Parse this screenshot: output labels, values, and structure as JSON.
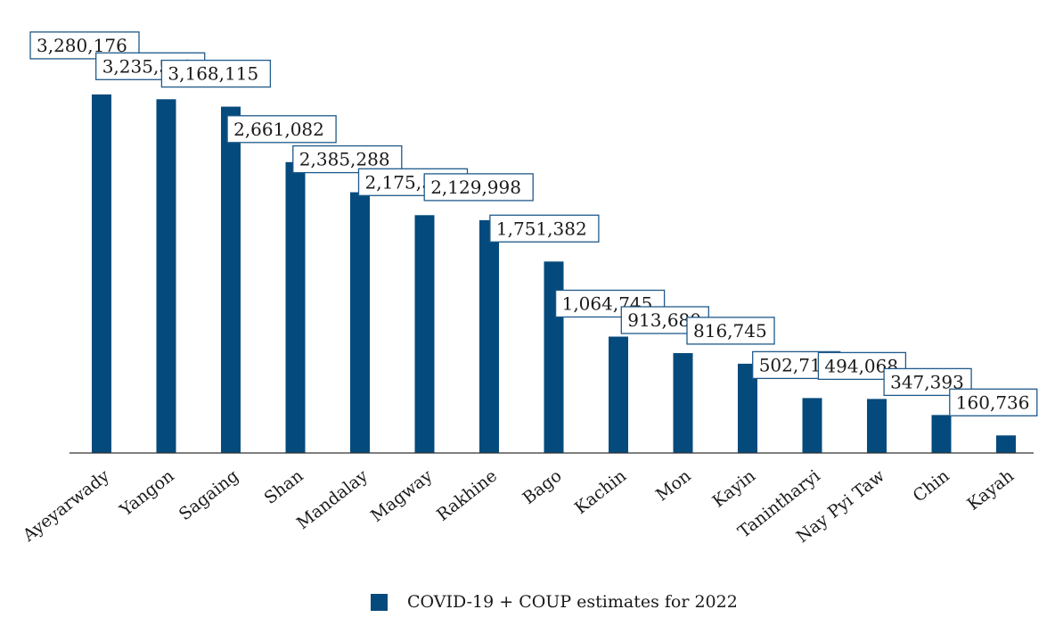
{
  "colors": {
    "bar": "#044a7c",
    "label_border": "#1f5a8a",
    "axis": "#333333"
  },
  "chart_data": {
    "type": "bar",
    "categories": [
      "Ayeyarwady",
      "Yangon",
      "Sagaing",
      "Shan",
      "Mandalay",
      "Magway",
      "Rakhine",
      "Bago",
      "Kachin",
      "Mon",
      "Kayin",
      "Tanintharyi",
      "Nay Pyi Taw",
      "Chin",
      "Kayah"
    ],
    "series": [
      {
        "name": "COVID-19 + COUP estimates for 2022",
        "values": [
          3280176,
          3235518,
          3168115,
          2661082,
          2385288,
          2175530,
          2129998,
          1751382,
          1064745,
          913680,
          816745,
          502719,
          494068,
          347393,
          160736
        ]
      }
    ],
    "data_labels": [
      "3,280,176",
      "3,235,518",
      "3,168,115",
      "2,661,082",
      "2,385,288",
      "2,175,530",
      "2,129,998",
      "1,751,382",
      "1,064,745",
      "913,680",
      "816,745",
      "502,719",
      "494,068",
      "347,393",
      "160,736"
    ],
    "xlabel": "",
    "ylabel": "",
    "ylim": [
      0,
      3300000
    ],
    "grid": false,
    "legend_position": "bottom-center"
  }
}
